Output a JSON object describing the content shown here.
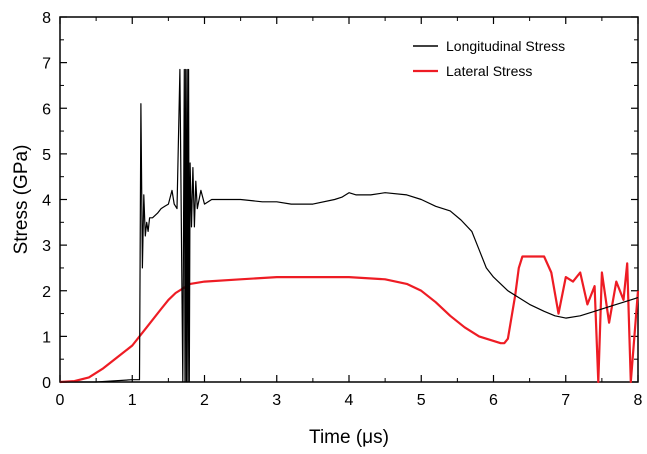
{
  "chart_data": {
    "type": "line",
    "title": "",
    "xlabel": "Time (μs)",
    "ylabel": "Stress (GPa)",
    "xlim": [
      0,
      8
    ],
    "ylim": [
      0,
      8
    ],
    "xticks": [
      0,
      1,
      2,
      3,
      4,
      5,
      6,
      7,
      8
    ],
    "yticks": [
      0,
      1,
      2,
      3,
      4,
      5,
      6,
      7,
      8
    ],
    "grid": false,
    "legend_position": "top-right",
    "series": [
      {
        "name": "Longitudinal Stress",
        "color": "#000000",
        "x": [
          0,
          0.5,
          1.0,
          1.08,
          1.1,
          1.12,
          1.14,
          1.16,
          1.18,
          1.2,
          1.22,
          1.24,
          1.28,
          1.35,
          1.4,
          1.45,
          1.5,
          1.55,
          1.58,
          1.62,
          1.66,
          1.7,
          1.72,
          1.73,
          1.74,
          1.75,
          1.76,
          1.77,
          1.78,
          1.79,
          1.8,
          1.82,
          1.84,
          1.86,
          1.88,
          1.9,
          1.95,
          2.0,
          2.1,
          2.2,
          2.5,
          2.8,
          3.0,
          3.2,
          3.5,
          3.8,
          3.9,
          4.0,
          4.1,
          4.3,
          4.5,
          4.8,
          5.0,
          5.2,
          5.4,
          5.55,
          5.7,
          5.8,
          5.9,
          6.0,
          6.1,
          6.2,
          6.35,
          6.5,
          6.7,
          6.85,
          7.0,
          7.2,
          7.4,
          7.6,
          7.8,
          8.0
        ],
        "y": [
          0.0,
          0.0,
          0.05,
          0.05,
          0.05,
          6.1,
          2.5,
          4.1,
          3.2,
          3.5,
          3.3,
          3.6,
          3.6,
          3.7,
          3.8,
          3.85,
          3.9,
          4.2,
          3.9,
          3.8,
          6.85,
          0.0,
          6.85,
          0.0,
          6.85,
          0.0,
          6.85,
          0.0,
          6.85,
          0.0,
          4.8,
          3.4,
          4.7,
          3.4,
          4.4,
          3.8,
          4.2,
          3.9,
          4.0,
          4.0,
          4.0,
          3.95,
          3.95,
          3.9,
          3.9,
          4.0,
          4.05,
          4.15,
          4.1,
          4.1,
          4.15,
          4.1,
          4.0,
          3.85,
          3.75,
          3.55,
          3.3,
          2.9,
          2.5,
          2.3,
          2.15,
          2.0,
          1.85,
          1.7,
          1.55,
          1.45,
          1.4,
          1.45,
          1.55,
          1.65,
          1.75,
          1.85
        ]
      },
      {
        "name": "Lateral Stress",
        "color": "#ee1c24",
        "x": [
          0,
          0.2,
          0.4,
          0.6,
          0.8,
          1.0,
          1.2,
          1.4,
          1.5,
          1.6,
          1.8,
          2.0,
          2.5,
          3.0,
          3.5,
          4.0,
          4.5,
          4.8,
          5.0,
          5.2,
          5.4,
          5.6,
          5.8,
          6.0,
          6.1,
          6.15,
          6.2,
          6.3,
          6.35,
          6.4,
          6.6,
          6.7,
          6.8,
          6.9,
          7.0,
          7.1,
          7.2,
          7.3,
          7.4,
          7.45,
          7.5,
          7.6,
          7.7,
          7.8,
          7.85,
          7.9,
          8.0
        ],
        "y": [
          0.0,
          0.02,
          0.1,
          0.3,
          0.55,
          0.8,
          1.2,
          1.6,
          1.8,
          1.95,
          2.15,
          2.2,
          2.25,
          2.3,
          2.3,
          2.3,
          2.25,
          2.15,
          2.0,
          1.75,
          1.45,
          1.2,
          1.0,
          0.9,
          0.85,
          0.85,
          0.95,
          1.9,
          2.5,
          2.75,
          2.75,
          2.75,
          2.4,
          1.5,
          2.3,
          2.2,
          2.4,
          1.7,
          2.1,
          0.0,
          2.4,
          1.3,
          2.2,
          1.8,
          2.6,
          0.0,
          2.0
        ]
      }
    ]
  }
}
